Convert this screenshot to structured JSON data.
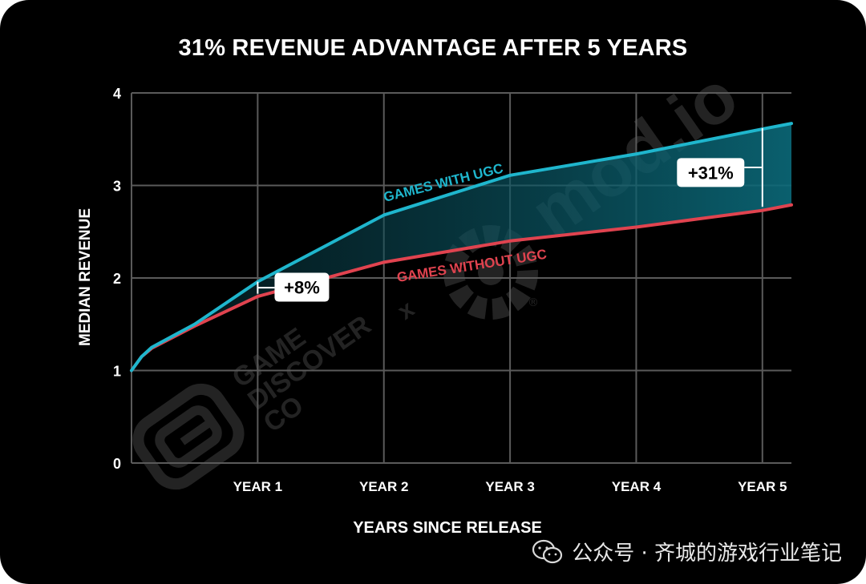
{
  "chart_data": {
    "type": "line",
    "title": "31% REVENUE ADVANTAGE AFTER 5 YEARS",
    "xlabel": "YEARS SINCE RELEASE",
    "ylabel": "MEDIAN REVENUE",
    "x_tick_labels": [
      "YEAR 1",
      "YEAR 2",
      "YEAR 3",
      "YEAR 4",
      "YEAR 5"
    ],
    "x_ticks": [
      1,
      2,
      3,
      4,
      5
    ],
    "y_ticks": [
      0,
      1,
      2,
      3,
      4
    ],
    "xlim": [
      0,
      5.23
    ],
    "ylim": [
      0,
      4
    ],
    "grid": true,
    "series": [
      {
        "name": "GAMES WITH UGC",
        "color": "#1fb6cd",
        "x": [
          0,
          0.08,
          0.16,
          0.5,
          1,
          2,
          3,
          4,
          5,
          5.23
        ],
        "y": [
          1,
          1.15,
          1.25,
          1.5,
          1.96,
          2.68,
          3.11,
          3.34,
          3.61,
          3.67
        ]
      },
      {
        "name": "GAMES WITHOUT UGC",
        "color": "#e0434f",
        "x": [
          0,
          0.08,
          0.16,
          0.5,
          1,
          2,
          3,
          4,
          5,
          5.23
        ],
        "y": [
          1,
          1.15,
          1.24,
          1.48,
          1.8,
          2.17,
          2.4,
          2.55,
          2.73,
          2.79
        ]
      }
    ],
    "annotations": [
      {
        "text": "+8%",
        "x": 1,
        "y_low": 1.83,
        "y_high": 1.96,
        "box_x": 1.35,
        "box_y": 1.9
      },
      {
        "text": "+31%",
        "x": 5,
        "y_low": 2.77,
        "y_high": 3.62,
        "box_x": 4.59,
        "box_y": 3.14
      }
    ]
  },
  "watermark": {
    "gdc_lines": [
      "GAME",
      "DISCOVER",
      "CO"
    ],
    "separator": "x",
    "modio": "mod.io",
    "registered": "®"
  },
  "footer": {
    "source_label": "公众号 · 齐城的游戏行业笔记"
  },
  "colors": {
    "background": "#000000",
    "grid": "#5a5a5a",
    "with_ugc": "#1fb6cd",
    "without_ugc": "#e0434f"
  }
}
